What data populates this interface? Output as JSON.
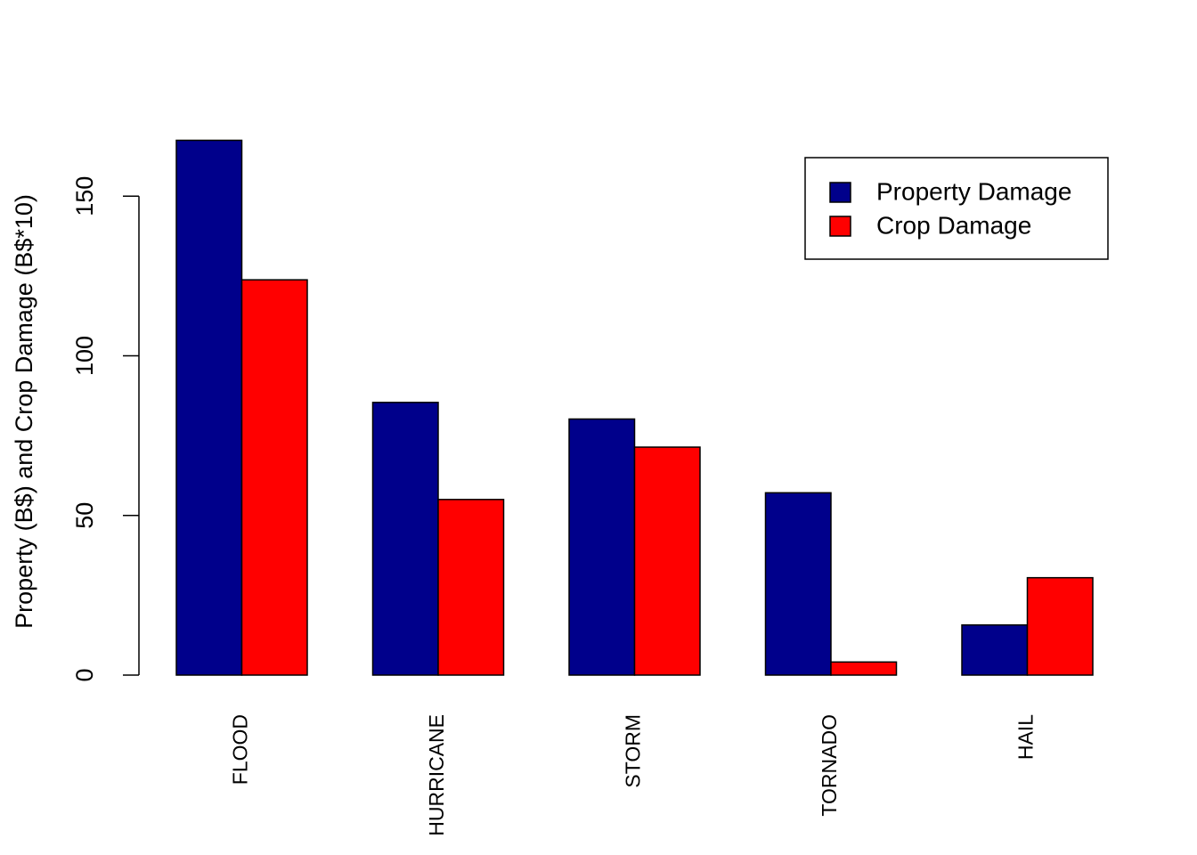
{
  "chart_data": {
    "type": "bar",
    "title": "",
    "xlabel": "",
    "ylabel": "Property (B$) and Crop Damage (B$*10)",
    "categories": [
      "FLOOD",
      "HURRICANE",
      "STORM",
      "TORNADO",
      "HAIL"
    ],
    "series": [
      {
        "name": "Property Damage",
        "color": "#00008B",
        "values": [
          167.5,
          85.4,
          80.2,
          57.1,
          15.7
        ]
      },
      {
        "name": "Crop Damage",
        "color": "#FF0000",
        "values": [
          123.8,
          55.0,
          71.4,
          4.1,
          30.5
        ]
      }
    ],
    "y_ticks": [
      0,
      50,
      100,
      150
    ],
    "y_tick_labels": [
      "0",
      "50",
      "100",
      "150"
    ],
    "ylim": [
      0,
      190
    ],
    "grid": false,
    "legend_position": "top-right"
  }
}
